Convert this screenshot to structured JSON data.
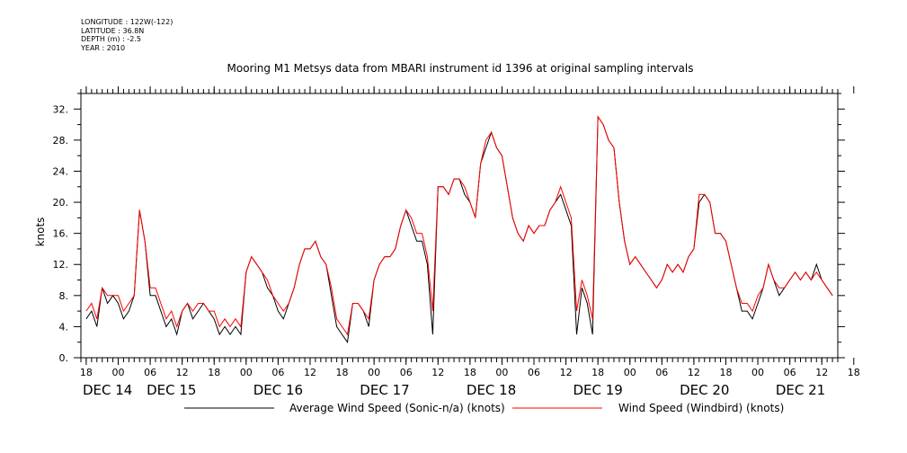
{
  "meta": {
    "longitude": "LONGITUDE : 122W(-122)",
    "latitude": "LATITUDE : 36.8N",
    "depth": "DEPTH (m) : -2.5",
    "year": "YEAR : 2010"
  },
  "chart_data": {
    "type": "line",
    "title": "Mooring M1 Metsys data from MBARI instrument id 1396 at original sampling intervals",
    "ylabel": "knots",
    "xlabel": "",
    "ylim": [
      0,
      34
    ],
    "yticks": [
      0,
      4,
      8,
      12,
      16,
      20,
      24,
      28,
      32
    ],
    "ytick_labels": [
      "0.",
      "4.",
      "8.",
      "12.",
      "16.",
      "20.",
      "24.",
      "28.",
      "32."
    ],
    "xlim_hours": [
      -7,
      135
    ],
    "hour_ticks": [
      {
        "h": -6,
        "label": "18"
      },
      {
        "h": 0,
        "label": "00"
      },
      {
        "h": 6,
        "label": "06"
      },
      {
        "h": 12,
        "label": "12"
      },
      {
        "h": 18,
        "label": "18"
      },
      {
        "h": 24,
        "label": "00"
      },
      {
        "h": 30,
        "label": "06"
      },
      {
        "h": 36,
        "label": "12"
      },
      {
        "h": 42,
        "label": "18"
      },
      {
        "h": 48,
        "label": "00"
      },
      {
        "h": 54,
        "label": "06"
      },
      {
        "h": 60,
        "label": "12"
      },
      {
        "h": 66,
        "label": "18"
      },
      {
        "h": 72,
        "label": "00"
      },
      {
        "h": 78,
        "label": "06"
      },
      {
        "h": 84,
        "label": "12"
      },
      {
        "h": 90,
        "label": "18"
      },
      {
        "h": 96,
        "label": "00"
      },
      {
        "h": 102,
        "label": "06"
      },
      {
        "h": 108,
        "label": "12"
      },
      {
        "h": 114,
        "label": "18"
      },
      {
        "h": 120,
        "label": "00"
      },
      {
        "h": 126,
        "label": "06"
      },
      {
        "h": 132,
        "label": "12"
      },
      {
        "h": 138,
        "label": "18"
      }
    ],
    "date_labels": [
      {
        "h": -2,
        "label": "DEC 14"
      },
      {
        "h": 10,
        "label": "DEC 15"
      },
      {
        "h": 30,
        "label": "DEC 16"
      },
      {
        "h": 50,
        "label": "DEC 17"
      },
      {
        "h": 70,
        "label": "DEC 18"
      },
      {
        "h": 90,
        "label": "DEC 19"
      },
      {
        "h": 110,
        "label": "DEC 20"
      },
      {
        "h": 128,
        "label": "DEC 21"
      }
    ],
    "x_hours": [
      -6,
      -5,
      -4,
      -3,
      -2,
      -1,
      0,
      1,
      2,
      3,
      4,
      5,
      6,
      7,
      8,
      9,
      10,
      11,
      12,
      13,
      14,
      15,
      16,
      17,
      18,
      19,
      20,
      21,
      22,
      23,
      24,
      25,
      26,
      27,
      28,
      29,
      30,
      31,
      32,
      33,
      34,
      35,
      36,
      37,
      38,
      39,
      40,
      41,
      42,
      43,
      44,
      45,
      46,
      47,
      48,
      49,
      50,
      51,
      52,
      53,
      54,
      55,
      56,
      57,
      58,
      59,
      60,
      61,
      62,
      63,
      64,
      65,
      66,
      67,
      68,
      69,
      70,
      71,
      72,
      73,
      74,
      75,
      76,
      77,
      78,
      79,
      80,
      81,
      82,
      83,
      84,
      85,
      86,
      87,
      88,
      89,
      90,
      91,
      92,
      93,
      94,
      95,
      96,
      97,
      98,
      99,
      100,
      101,
      102,
      103,
      104,
      105,
      106,
      107,
      108,
      109,
      110,
      111,
      112,
      113,
      114,
      115,
      116,
      117,
      118,
      119,
      120,
      121,
      122,
      123,
      124,
      125,
      126,
      127,
      128,
      129,
      130,
      131,
      132,
      133,
      134
    ],
    "series": [
      {
        "name": "Average Wind Speed (Sonic-n/a) (knots)",
        "color": "#000000",
        "values": [
          5,
          6,
          4,
          9,
          7,
          8,
          7,
          5,
          6,
          8,
          19,
          15,
          8,
          8,
          6,
          4,
          5,
          3,
          6,
          7,
          5,
          6,
          7,
          6,
          5,
          3,
          4,
          3,
          4,
          3,
          11,
          13,
          12,
          11,
          9,
          8,
          6,
          5,
          7,
          9,
          12,
          14,
          14,
          15,
          13,
          12,
          8,
          4,
          3,
          2,
          7,
          7,
          6,
          4,
          10,
          12,
          13,
          13,
          14,
          17,
          19,
          17,
          15,
          15,
          12,
          3,
          22,
          22,
          21,
          23,
          23,
          21,
          20,
          18,
          25,
          27,
          29,
          27,
          26,
          22,
          18,
          16,
          15,
          17,
          16,
          17,
          17,
          19,
          20,
          21,
          19,
          17,
          3,
          9,
          7,
          3,
          31,
          30,
          28,
          27,
          20,
          15,
          12,
          13,
          12,
          11,
          10,
          9,
          10,
          12,
          11,
          12,
          11,
          13,
          14,
          20,
          21,
          20,
          16,
          16,
          15,
          12,
          9,
          6,
          6,
          5,
          7,
          9,
          12,
          10,
          8,
          9,
          10,
          11,
          10,
          11,
          10,
          12,
          10,
          9,
          8
        ]
      },
      {
        "name": "Wind Speed (Windbird) (knots)",
        "color": "#ff0000",
        "values": [
          6,
          7,
          5,
          9,
          8,
          8,
          8,
          6,
          7,
          8,
          19,
          15,
          9,
          9,
          7,
          5,
          6,
          4,
          6,
          7,
          6,
          7,
          7,
          6,
          6,
          4,
          5,
          4,
          5,
          4,
          11,
          13,
          12,
          11,
          10,
          8,
          7,
          6,
          7,
          9,
          12,
          14,
          14,
          15,
          13,
          12,
          9,
          5,
          4,
          3,
          7,
          7,
          6,
          5,
          10,
          12,
          13,
          13,
          14,
          17,
          19,
          18,
          16,
          16,
          13,
          6,
          22,
          22,
          21,
          23,
          23,
          22,
          20,
          18,
          25,
          28,
          29,
          27,
          26,
          22,
          18,
          16,
          15,
          17,
          16,
          17,
          17,
          19,
          20,
          22,
          20,
          18,
          6,
          10,
          8,
          5,
          31,
          30,
          28,
          27,
          20,
          15,
          12,
          13,
          12,
          11,
          10,
          9,
          10,
          12,
          11,
          12,
          11,
          13,
          14,
          21,
          21,
          20,
          16,
          16,
          15,
          12,
          9,
          7,
          7,
          6,
          8,
          9,
          12,
          10,
          9,
          9,
          10,
          11,
          10,
          11,
          10,
          11,
          10,
          9,
          8
        ]
      }
    ],
    "legend_position": "bottom"
  }
}
